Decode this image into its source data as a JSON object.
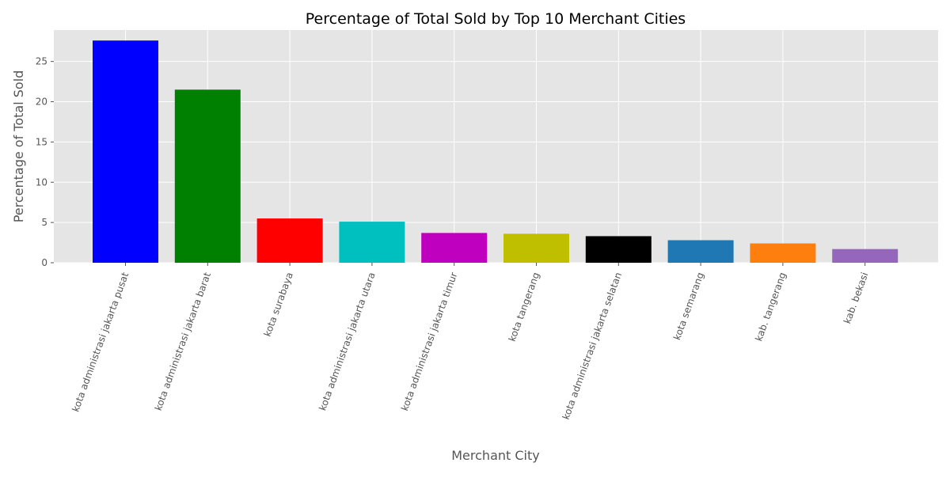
{
  "chart_data": {
    "type": "bar",
    "title": "Percentage of Total Sold by Top 10 Merchant Cities",
    "xlabel": "Merchant City",
    "ylabel": "Percentage of Total Sold",
    "ylim": [
      0,
      28.9
    ],
    "yticks": [
      0,
      5,
      10,
      15,
      20,
      25
    ],
    "grid": true,
    "categories": [
      "kota administrasi jakarta pusat",
      "kota administrasi jakarta barat",
      "kota surabaya",
      "kota administrasi jakarta utara",
      "kota administrasi jakarta timur",
      "kota tangerang",
      "kota administrasi jakarta selatan",
      "kota semarang",
      "kab. tangerang",
      "kab. bekasi"
    ],
    "values": [
      27.6,
      21.5,
      5.5,
      5.1,
      3.7,
      3.6,
      3.3,
      2.8,
      2.4,
      1.7
    ],
    "colors": [
      "#0000ff",
      "#008000",
      "#ff0000",
      "#00bfbf",
      "#bf00bf",
      "#bfbf00",
      "#000000",
      "#1f77b4",
      "#ff7f0e",
      "#9467bd"
    ],
    "background_color": "#e5e5e5",
    "grid_color": "#ffffff"
  }
}
